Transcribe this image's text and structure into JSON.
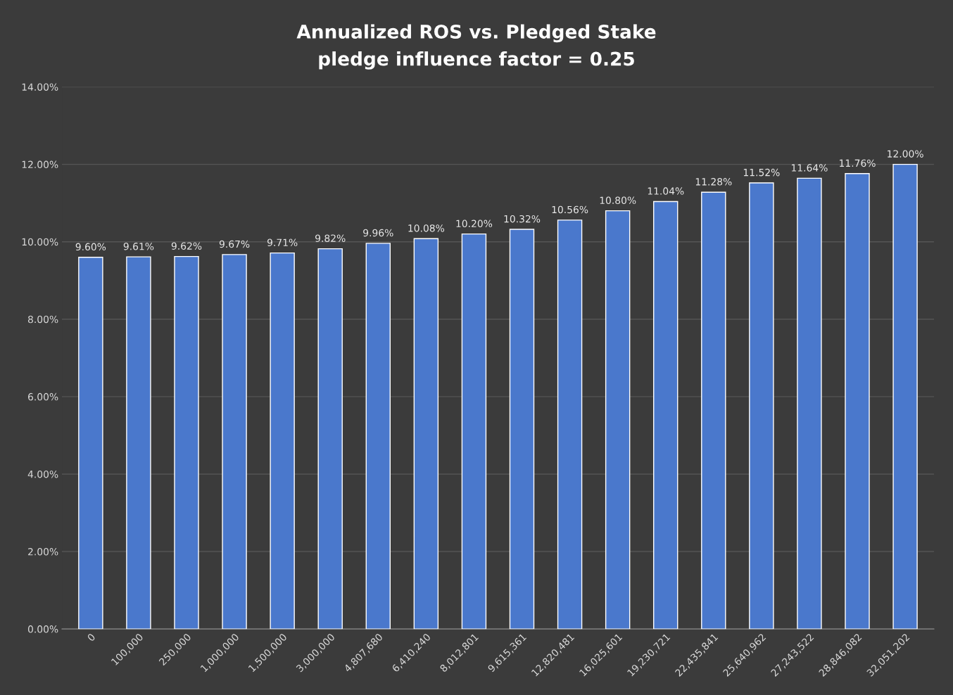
{
  "chart_data": {
    "type": "bar",
    "title": "Annualized ROS vs. Pledged Stake",
    "subtitle": "pledge influence factor = 0.25",
    "categories": [
      "0",
      "100,000",
      "250,000",
      "1,000,000",
      "1,500,000",
      "3,000,000",
      "4,807,680",
      "6,410,240",
      "8,012,801",
      "9,615,361",
      "12,820,481",
      "16,025,601",
      "19,230,721",
      "22,435,841",
      "25,640,962",
      "27,243,522",
      "28,846,082",
      "32,051,202"
    ],
    "values": [
      9.6,
      9.61,
      9.62,
      9.67,
      9.71,
      9.82,
      9.96,
      10.08,
      10.2,
      10.32,
      10.56,
      10.8,
      11.04,
      11.28,
      11.52,
      11.64,
      11.76,
      12.0
    ],
    "value_labels": [
      "9.60%",
      "9.61%",
      "9.62%",
      "9.67%",
      "9.71%",
      "9.82%",
      "9.96%",
      "10.08%",
      "10.20%",
      "10.32%",
      "10.56%",
      "10.80%",
      "11.04%",
      "11.28%",
      "11.52%",
      "11.64%",
      "11.76%",
      "12.00%"
    ],
    "color": "#4a78cc",
    "ylim": [
      0,
      14
    ],
    "yticks": [
      {
        "value": 0,
        "label": "0.00%"
      },
      {
        "value": 2,
        "label": "2.00%"
      },
      {
        "value": 4,
        "label": "4.00%"
      },
      {
        "value": 6,
        "label": "6.00%"
      },
      {
        "value": 8,
        "label": "8.00%"
      },
      {
        "value": 10,
        "label": "10.00%"
      },
      {
        "value": 12,
        "label": "12.00%"
      },
      {
        "value": 14,
        "label": "14.00%"
      }
    ],
    "grid": "y"
  }
}
